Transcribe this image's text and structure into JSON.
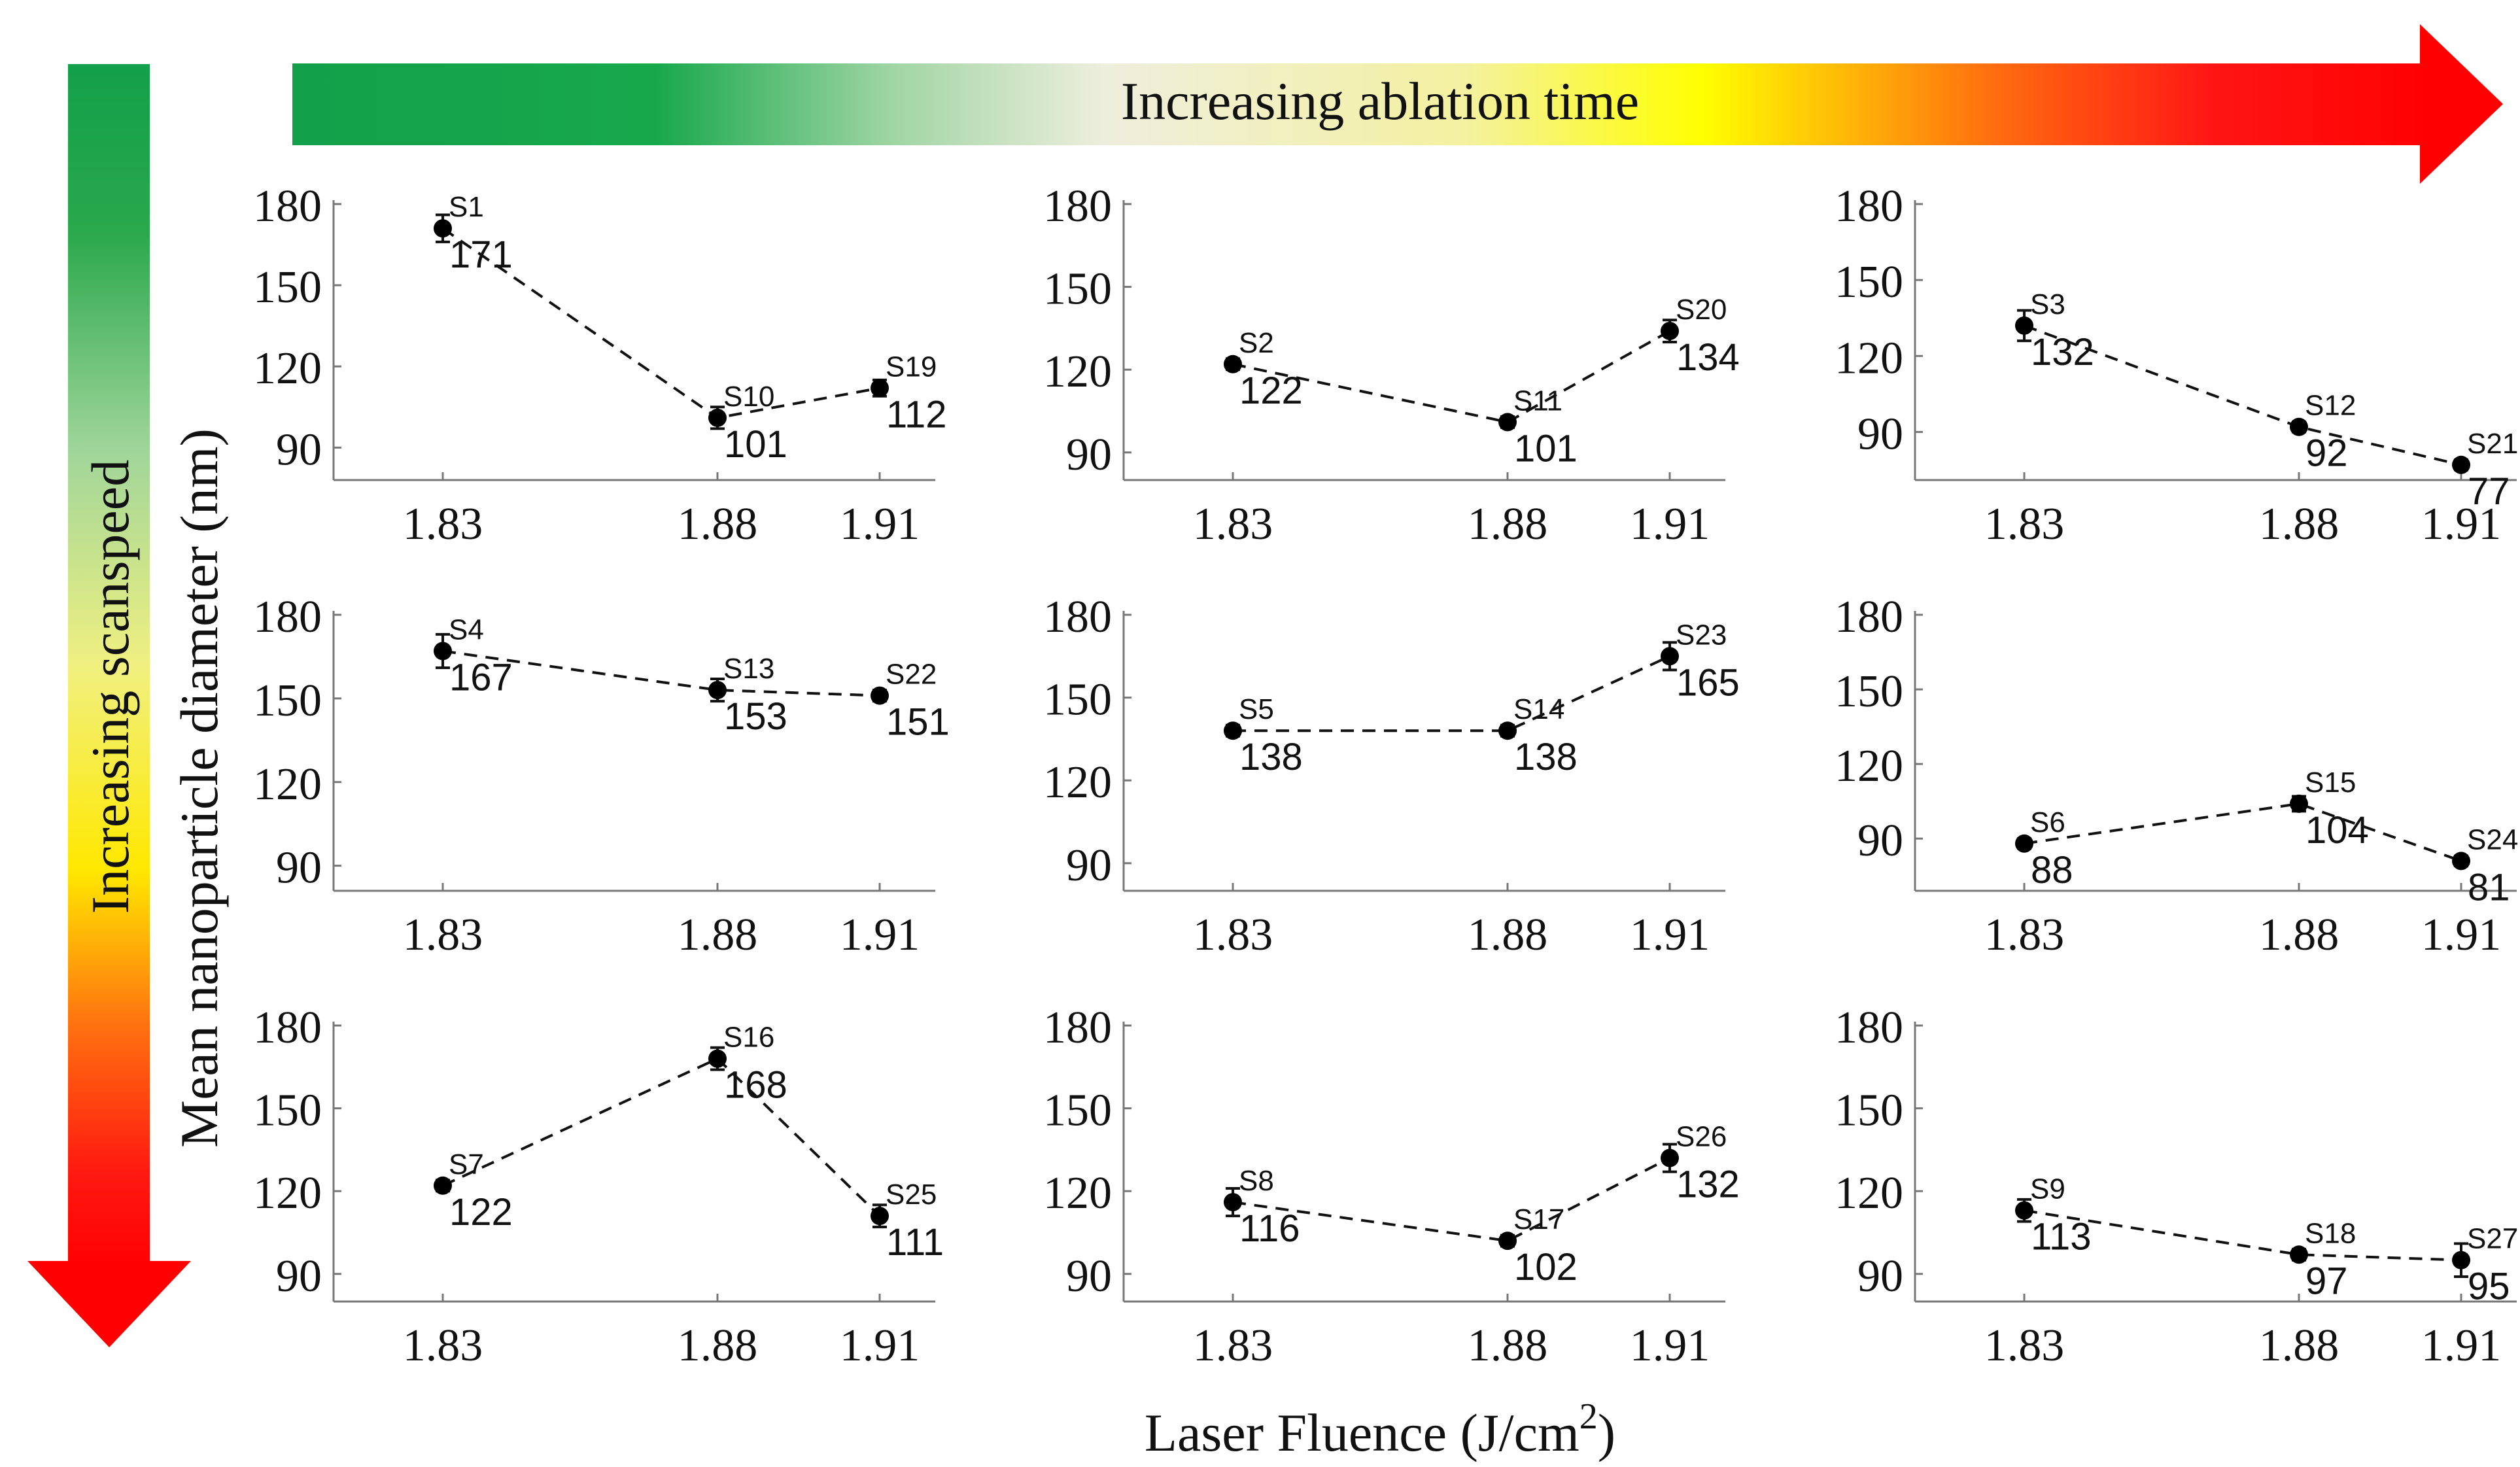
{
  "banner": {
    "horizontal_label": "Increasing ablation time",
    "vertical_label": "Increasing scanspeed",
    "colors": {
      "green": "#12a04a",
      "pale": "#eeeedd",
      "yellow": "#ffff00",
      "red": "#ff1010"
    }
  },
  "axes": {
    "ylabel": "Mean nanoparticle diameter (nm)",
    "xlabel_main": "Laser Fluence (J/cm",
    "xlabel_sup": "2",
    "xlabel_close": ")"
  },
  "chart_data": [
    {
      "type": "line",
      "panel": "row1-col1",
      "x": [
        1.83,
        1.88,
        1.91
      ],
      "x_ticks": [
        "1.83",
        "1.88",
        "1.91"
      ],
      "y_ticks": [
        90,
        120,
        150,
        180
      ],
      "ylim": [
        78,
        180
      ],
      "points": [
        {
          "sample": "S1",
          "value": 171,
          "err": 5
        },
        {
          "sample": "S10",
          "value": 101,
          "err": 4
        },
        {
          "sample": "S19",
          "value": 112,
          "err": 3
        }
      ]
    },
    {
      "type": "line",
      "panel": "row1-col2",
      "x": [
        1.83,
        1.88,
        1.91
      ],
      "x_ticks": [
        "1.83",
        "1.88",
        "1.91"
      ],
      "y_ticks": [
        90,
        120,
        150,
        180
      ],
      "ylim": [
        80,
        180
      ],
      "points": [
        {
          "sample": "S2",
          "value": 122,
          "err": 2
        },
        {
          "sample": "S11",
          "value": 101,
          "err": 2
        },
        {
          "sample": "S20",
          "value": 134,
          "err": 4
        }
      ]
    },
    {
      "type": "line",
      "panel": "row1-col3",
      "x": [
        1.83,
        1.88,
        1.91
      ],
      "x_ticks": [
        "1.83",
        "1.88",
        "1.91"
      ],
      "y_ticks": [
        90,
        120,
        150,
        180
      ],
      "ylim": [
        71,
        180
      ],
      "points": [
        {
          "sample": "S3",
          "value": 132,
          "err": 6
        },
        {
          "sample": "S12",
          "value": 92,
          "err": 2
        },
        {
          "sample": "S21",
          "value": 77,
          "err": 2
        }
      ]
    },
    {
      "type": "line",
      "panel": "row2-col1",
      "x": [
        1.83,
        1.88,
        1.91
      ],
      "x_ticks": [
        "1.83",
        "1.88",
        "1.91"
      ],
      "y_ticks": [
        90,
        120,
        150,
        180
      ],
      "ylim": [
        81,
        180
      ],
      "points": [
        {
          "sample": "S4",
          "value": 167,
          "err": 6
        },
        {
          "sample": "S13",
          "value": 153,
          "err": 4
        },
        {
          "sample": "S22",
          "value": 151,
          "err": 2
        }
      ]
    },
    {
      "type": "line",
      "panel": "row2-col2",
      "x": [
        1.83,
        1.88,
        1.91
      ],
      "x_ticks": [
        "1.83",
        "1.88",
        "1.91"
      ],
      "y_ticks": [
        90,
        120,
        150,
        180
      ],
      "ylim": [
        80,
        180
      ],
      "points": [
        {
          "sample": "S5",
          "value": 138,
          "err": 2
        },
        {
          "sample": "S14",
          "value": 138,
          "err": 2
        },
        {
          "sample": "S23",
          "value": 165,
          "err": 5
        }
      ]
    },
    {
      "type": "line",
      "panel": "row2-col3",
      "x": [
        1.83,
        1.88,
        1.91
      ],
      "x_ticks": [
        "1.83",
        "1.88",
        "1.91"
      ],
      "y_ticks": [
        90,
        120,
        150,
        180
      ],
      "ylim": [
        69,
        180
      ],
      "points": [
        {
          "sample": "S6",
          "value": 88,
          "err": 2
        },
        {
          "sample": "S15",
          "value": 104,
          "err": 3
        },
        {
          "sample": "S24",
          "value": 81,
          "err": 2
        }
      ]
    },
    {
      "type": "line",
      "panel": "row3-col1",
      "x": [
        1.83,
        1.88,
        1.91
      ],
      "x_ticks": [
        "1.83",
        "1.88",
        "1.91"
      ],
      "y_ticks": [
        90,
        120,
        150,
        180
      ],
      "ylim": [
        80,
        180
      ],
      "points": [
        {
          "sample": "S7",
          "value": 122,
          "err": 2
        },
        {
          "sample": "S16",
          "value": 168,
          "err": 4
        },
        {
          "sample": "S25",
          "value": 111,
          "err": 4
        }
      ]
    },
    {
      "type": "line",
      "panel": "row3-col2",
      "x": [
        1.83,
        1.88,
        1.91
      ],
      "x_ticks": [
        "1.83",
        "1.88",
        "1.91"
      ],
      "y_ticks": [
        90,
        120,
        150,
        180
      ],
      "ylim": [
        80,
        180
      ],
      "points": [
        {
          "sample": "S8",
          "value": 116,
          "err": 5
        },
        {
          "sample": "S17",
          "value": 102,
          "err": 2
        },
        {
          "sample": "S26",
          "value": 132,
          "err": 5
        }
      ]
    },
    {
      "type": "line",
      "panel": "row3-col3",
      "x": [
        1.83,
        1.88,
        1.91
      ],
      "x_ticks": [
        "1.83",
        "1.88",
        "1.91"
      ],
      "y_ticks": [
        90,
        120,
        150,
        180
      ],
      "ylim": [
        80,
        180
      ],
      "points": [
        {
          "sample": "S9",
          "value": 113,
          "err": 4
        },
        {
          "sample": "S18",
          "value": 97,
          "err": 2
        },
        {
          "sample": "S27",
          "value": 95,
          "err": 6
        }
      ]
    }
  ]
}
